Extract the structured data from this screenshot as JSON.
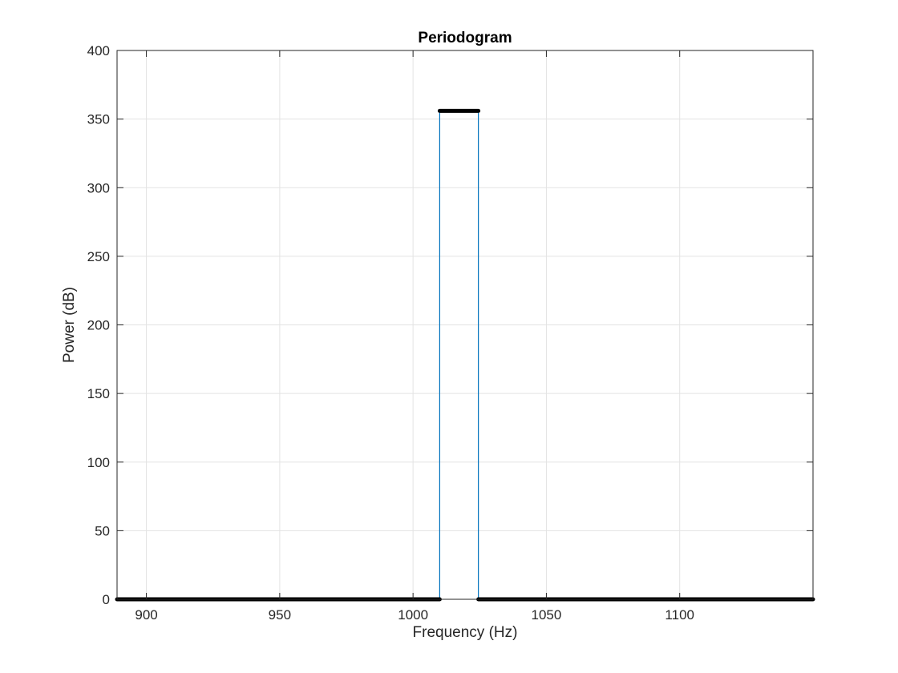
{
  "chart_data": {
    "type": "line",
    "title": "Periodogram",
    "xlabel": "Frequency (Hz)",
    "ylabel": "Power (dB)",
    "xlim": [
      889,
      1150
    ],
    "ylim": [
      0,
      400
    ],
    "xticks": [
      900,
      950,
      1000,
      1050,
      1100
    ],
    "yticks": [
      0,
      50,
      100,
      150,
      200,
      250,
      300,
      350,
      400
    ],
    "grid": true,
    "legend": "none",
    "series": [
      {
        "style": "thin-line",
        "color": "#0072bd",
        "x": [
          889,
          1010,
          1010,
          1024.5,
          1024.5,
          1150
        ],
        "y": [
          0,
          0,
          356,
          356,
          0,
          0
        ]
      },
      {
        "style": "dense-markers",
        "color": "#000000",
        "segments": [
          {
            "x": [
              889,
              1010
            ],
            "y": [
              0,
              0
            ]
          },
          {
            "x": [
              1010,
              1024.5
            ],
            "y": [
              356,
              356
            ]
          },
          {
            "x": [
              1024.5,
              1150
            ],
            "y": [
              0,
              0
            ]
          }
        ]
      }
    ]
  }
}
